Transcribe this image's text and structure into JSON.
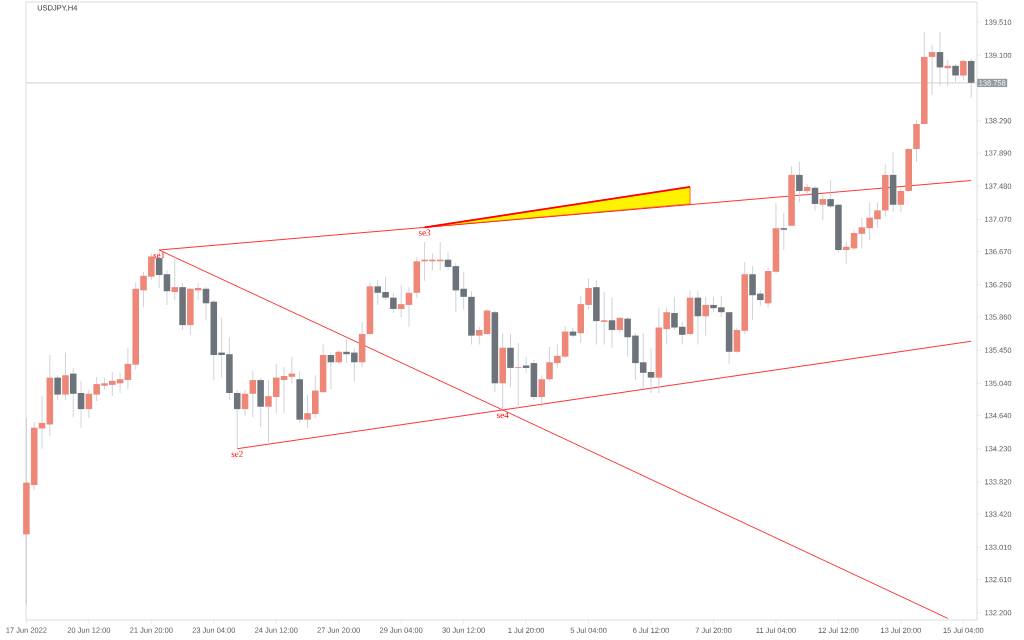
{
  "chart_data": {
    "type": "candlestick",
    "title": "USDJPY,H4",
    "categories": [
      "17 Jun 2022",
      null,
      null,
      null,
      null,
      null,
      null,
      null,
      "20 Jun 12:00",
      null,
      null,
      null,
      null,
      null,
      null,
      null,
      "21 Jun 20:00",
      null,
      null,
      null,
      null,
      null,
      null,
      null,
      "23 Jun 04:00",
      null,
      null,
      null,
      null,
      null,
      null,
      null,
      "24 Jun 12:00",
      null,
      null,
      null,
      null,
      null,
      null,
      null,
      "27 Jun 20:00",
      null,
      null,
      null,
      null,
      null,
      null,
      null,
      "29 Jun 04:00",
      null,
      null,
      null,
      null,
      null,
      null,
      null,
      "30 Jun 12:00",
      null,
      null,
      null,
      null,
      null,
      null,
      null,
      "1 Jul 20:00",
      null,
      null,
      null,
      null,
      null,
      null,
      null,
      "5 Jul 04:00",
      null,
      null,
      null,
      null,
      null,
      null,
      null,
      "6 Jul 12:00",
      null,
      null,
      null,
      null,
      null,
      null,
      null,
      "7 Jul 20:00",
      null,
      null,
      null,
      null,
      null,
      null,
      null,
      "11 Jul 04:00",
      null,
      null,
      null,
      null,
      null,
      null,
      null,
      "12 Jul 12:00",
      null,
      null,
      null,
      null,
      null,
      null,
      null,
      "13 Jul 20:00",
      null,
      null,
      null,
      null,
      null,
      null,
      null,
      "15 Jul 04:00",
      null
    ],
    "ohlc": [
      [
        133.17,
        134.61,
        132.3,
        133.81
      ],
      [
        133.78,
        134.56,
        133.72,
        134.49
      ],
      [
        134.48,
        134.88,
        134.23,
        134.55
      ],
      [
        134.53,
        135.39,
        134.39,
        135.11
      ],
      [
        135.11,
        135.14,
        134.83,
        134.9
      ],
      [
        134.9,
        135.42,
        134.83,
        135.14
      ],
      [
        135.16,
        135.23,
        134.62,
        134.91
      ],
      [
        134.92,
        135.07,
        134.49,
        134.72
      ],
      [
        134.72,
        134.96,
        134.61,
        134.91
      ],
      [
        134.9,
        135.12,
        134.82,
        135.03
      ],
      [
        135.01,
        135.11,
        134.96,
        135.04
      ],
      [
        135.02,
        135.18,
        134.88,
        135.07
      ],
      [
        135.04,
        135.17,
        134.92,
        135.09
      ],
      [
        135.08,
        135.48,
        134.97,
        135.28
      ],
      [
        135.27,
        136.29,
        135.21,
        136.21
      ],
      [
        136.19,
        136.42,
        135.98,
        136.37
      ],
      [
        136.36,
        136.65,
        136.32,
        136.61
      ],
      [
        136.59,
        136.69,
        136.22,
        136.38
      ],
      [
        136.39,
        136.44,
        136.01,
        136.18
      ],
      [
        136.17,
        136.6,
        136.07,
        136.23
      ],
      [
        136.23,
        136.28,
        135.7,
        135.76
      ],
      [
        135.76,
        136.22,
        135.64,
        136.21
      ],
      [
        136.19,
        136.28,
        136.07,
        136.22
      ],
      [
        136.21,
        136.23,
        135.82,
        136.03
      ],
      [
        136.05,
        136.07,
        135.08,
        135.39
      ],
      [
        135.42,
        135.85,
        135.11,
        135.39
      ],
      [
        135.4,
        135.61,
        134.83,
        134.92
      ],
      [
        134.92,
        134.96,
        134.23,
        134.72
      ],
      [
        134.72,
        134.96,
        134.64,
        134.91
      ],
      [
        134.91,
        135.19,
        134.62,
        135.08
      ],
      [
        135.08,
        135.11,
        134.5,
        134.75
      ],
      [
        134.75,
        135.08,
        134.31,
        134.88
      ],
      [
        134.87,
        135.28,
        134.67,
        135.11
      ],
      [
        135.08,
        135.24,
        134.67,
        135.13
      ],
      [
        135.12,
        135.37,
        135.04,
        135.16
      ],
      [
        135.09,
        135.19,
        134.55,
        134.59
      ],
      [
        134.59,
        134.9,
        134.49,
        134.67
      ],
      [
        134.66,
        135.14,
        134.61,
        134.95
      ],
      [
        134.93,
        135.52,
        134.92,
        135.39
      ],
      [
        135.39,
        135.42,
        134.97,
        135.3
      ],
      [
        135.3,
        135.45,
        135.28,
        135.43
      ],
      [
        135.43,
        135.58,
        135.29,
        135.4
      ],
      [
        135.42,
        135.48,
        135.07,
        135.3
      ],
      [
        135.3,
        135.8,
        135.24,
        135.65
      ],
      [
        135.65,
        136.29,
        135.64,
        136.24
      ],
      [
        136.24,
        136.32,
        136.01,
        136.16
      ],
      [
        136.17,
        136.36,
        136.07,
        136.1
      ],
      [
        136.1,
        136.16,
        135.91,
        135.96
      ],
      [
        135.96,
        136.26,
        135.86,
        136.02
      ],
      [
        136.01,
        136.23,
        135.74,
        136.16
      ],
      [
        136.16,
        136.6,
        136.1,
        136.55
      ],
      [
        136.55,
        136.79,
        136.31,
        136.57
      ],
      [
        136.55,
        136.65,
        136.44,
        136.57
      ],
      [
        136.55,
        136.79,
        136.44,
        136.57
      ],
      [
        136.57,
        136.66,
        136.44,
        136.48
      ],
      [
        136.49,
        136.53,
        135.92,
        136.19
      ],
      [
        136.21,
        136.42,
        135.95,
        136.11
      ],
      [
        136.11,
        136.18,
        135.52,
        135.63
      ],
      [
        135.63,
        135.74,
        135.52,
        135.7
      ],
      [
        135.65,
        135.96,
        135.64,
        135.94
      ],
      [
        135.92,
        135.94,
        134.93,
        135.04
      ],
      [
        135.04,
        135.66,
        134.71,
        135.48
      ],
      [
        135.48,
        135.65,
        134.99,
        135.23
      ],
      [
        135.23,
        135.54,
        134.73,
        135.24
      ],
      [
        135.26,
        135.37,
        135.17,
        135.23
      ],
      [
        135.29,
        135.33,
        134.83,
        134.87
      ],
      [
        134.87,
        135.14,
        134.75,
        135.09
      ],
      [
        135.09,
        135.49,
        135.06,
        135.3
      ],
      [
        135.29,
        135.52,
        135.23,
        135.38
      ],
      [
        135.37,
        135.75,
        135.35,
        135.68
      ],
      [
        135.68,
        135.73,
        135.61,
        135.63
      ],
      [
        135.66,
        136.12,
        135.54,
        136.02
      ],
      [
        136.01,
        136.34,
        135.95,
        136.22
      ],
      [
        136.23,
        136.32,
        135.52,
        135.81
      ],
      [
        135.8,
        136.17,
        135.52,
        135.82
      ],
      [
        135.82,
        136.1,
        135.48,
        135.7
      ],
      [
        135.7,
        135.86,
        135.66,
        135.85
      ],
      [
        135.84,
        135.86,
        135.37,
        135.61
      ],
      [
        135.63,
        135.66,
        135.08,
        135.29
      ],
      [
        135.3,
        135.66,
        134.98,
        135.17
      ],
      [
        135.18,
        135.47,
        134.92,
        135.11
      ],
      [
        135.11,
        135.97,
        134.92,
        135.73
      ],
      [
        135.71,
        135.98,
        135.52,
        135.92
      ],
      [
        135.91,
        136.11,
        135.7,
        135.73
      ],
      [
        135.74,
        135.8,
        135.52,
        135.64
      ],
      [
        135.65,
        136.19,
        135.63,
        136.1
      ],
      [
        136.1,
        136.18,
        135.52,
        135.87
      ],
      [
        135.87,
        136.11,
        135.63,
        136.01
      ],
      [
        136.01,
        136.11,
        135.92,
        135.97
      ],
      [
        135.98,
        136.12,
        135.86,
        135.92
      ],
      [
        135.92,
        135.92,
        135.28,
        135.43
      ],
      [
        135.43,
        135.73,
        135.42,
        135.7
      ],
      [
        135.69,
        136.54,
        135.65,
        136.39
      ],
      [
        136.39,
        136.49,
        135.82,
        136.13
      ],
      [
        136.15,
        136.19,
        136.0,
        136.07
      ],
      [
        136.03,
        136.47,
        135.98,
        136.43
      ],
      [
        136.42,
        137.27,
        136.4,
        136.96
      ],
      [
        136.96,
        137.15,
        136.69,
        136.94
      ],
      [
        136.99,
        137.73,
        136.99,
        137.62
      ],
      [
        137.62,
        137.78,
        137.28,
        137.42
      ],
      [
        137.42,
        137.51,
        137.36,
        137.47
      ],
      [
        137.46,
        137.48,
        137.18,
        137.26
      ],
      [
        137.25,
        137.37,
        137.06,
        137.32
      ],
      [
        137.32,
        137.56,
        137.21,
        137.23
      ],
      [
        137.25,
        137.26,
        136.66,
        136.69
      ],
      [
        136.69,
        136.79,
        136.52,
        136.73
      ],
      [
        136.71,
        136.94,
        136.69,
        136.9
      ],
      [
        136.89,
        137.09,
        136.71,
        136.97
      ],
      [
        136.96,
        137.28,
        136.81,
        137.09
      ],
      [
        137.07,
        137.28,
        136.97,
        137.18
      ],
      [
        137.18,
        137.75,
        137.11,
        137.62
      ],
      [
        137.62,
        137.9,
        137.16,
        137.25
      ],
      [
        137.25,
        137.46,
        137.16,
        137.42
      ],
      [
        137.42,
        137.95,
        137.41,
        137.94
      ],
      [
        137.94,
        138.3,
        137.78,
        138.25
      ],
      [
        138.25,
        139.39,
        138.25,
        139.08
      ],
      [
        139.08,
        139.23,
        138.61,
        139.14
      ],
      [
        139.14,
        139.39,
        138.72,
        138.95
      ],
      [
        138.94,
        139.04,
        138.72,
        138.97
      ],
      [
        138.97,
        138.99,
        138.77,
        138.85
      ],
      [
        138.85,
        139.05,
        138.79,
        139.03
      ],
      [
        139.03,
        139.06,
        138.57,
        138.76
      ]
    ],
    "series": [
      {
        "type": "line",
        "color": "#ff0000",
        "values": [
          null,
          null,
          null,
          null,
          null,
          null,
          null,
          null,
          null,
          null,
          null,
          null,
          null,
          null,
          null,
          null,
          null,
          136.69,
          null,
          null,
          null,
          null,
          null,
          null,
          null,
          null,
          null,
          null,
          null,
          null,
          null,
          null,
          null,
          null,
          null,
          null,
          null,
          null,
          null,
          null,
          null,
          null,
          null,
          null,
          null,
          null,
          null,
          null,
          null,
          null,
          null,
          136.97,
          null,
          null,
          null,
          null,
          null,
          null,
          null,
          null,
          null,
          null,
          null,
          null,
          null,
          null,
          null,
          null,
          null,
          null,
          null,
          null,
          null,
          null,
          null,
          null,
          null,
          null,
          null,
          null,
          null,
          null,
          null,
          null,
          null,
          null,
          null,
          null,
          null,
          null,
          null,
          null,
          null,
          null,
          null,
          null,
          null,
          null,
          null,
          null,
          null,
          null,
          null,
          null,
          null,
          null,
          null,
          null,
          null,
          null,
          null,
          null,
          null,
          null,
          null,
          null,
          null,
          null,
          null,
          null,
          null,
          137.55
        ]
      },
      {
        "type": "line",
        "color": "#ff0000",
        "values": [
          null,
          null,
          null,
          null,
          null,
          null,
          null,
          null,
          null,
          null,
          null,
          null,
          null,
          null,
          null,
          null,
          null,
          null,
          null,
          null,
          null,
          null,
          null,
          null,
          null,
          null,
          null,
          134.23,
          null,
          null,
          null,
          null,
          null,
          null,
          null,
          null,
          null,
          null,
          null,
          null,
          null,
          null,
          null,
          null,
          null,
          null,
          null,
          null,
          null,
          null,
          null,
          null,
          null,
          null,
          null,
          null,
          null,
          null,
          null,
          null,
          null,
          134.71,
          null,
          null,
          null,
          null,
          null,
          null,
          null,
          null,
          null,
          null,
          null,
          null,
          null,
          null,
          null,
          null,
          null,
          null,
          null,
          null,
          null,
          null,
          null,
          null,
          null,
          null,
          null,
          null,
          null,
          null,
          null,
          null,
          null,
          null,
          null,
          null,
          null,
          null,
          null,
          null,
          null,
          null,
          null,
          null,
          null,
          null,
          null,
          null,
          null,
          null,
          null,
          null,
          null,
          null,
          null,
          null,
          null,
          null,
          null,
          135.56
        ]
      },
      {
        "type": "line",
        "color": "#ff0000",
        "values": [
          null,
          null,
          null,
          null,
          null,
          null,
          null,
          null,
          null,
          null,
          null,
          null,
          null,
          null,
          null,
          null,
          null,
          136.69,
          null,
          null,
          null,
          null,
          null,
          null,
          null,
          null,
          null,
          null,
          null,
          null,
          null,
          null,
          null,
          null,
          null,
          null,
          null,
          null,
          null,
          null,
          null,
          null,
          null,
          null,
          null,
          null,
          null,
          null,
          null,
          null,
          null,
          null,
          null,
          null,
          null,
          null,
          null,
          null,
          null,
          null,
          null,
          134.71,
          null,
          null,
          null,
          null,
          null,
          null,
          null,
          null,
          null,
          null,
          null,
          null,
          null,
          null,
          null,
          null,
          null,
          null,
          null,
          null,
          null,
          null,
          null,
          null,
          null,
          null,
          null,
          null,
          null,
          null,
          null,
          null,
          null,
          null,
          null,
          null,
          null,
          null,
          null,
          null,
          null,
          null,
          null,
          null,
          null,
          null,
          null,
          null,
          null,
          null,
          null,
          null,
          null,
          null,
          null,
          null,
          132.13,
          null,
          null,
          null
        ]
      },
      {
        "type": "line",
        "color": "#ff0000",
        "values": [
          null,
          null,
          null,
          null,
          null,
          null,
          null,
          null,
          null,
          null,
          null,
          null,
          null,
          null,
          null,
          null,
          null,
          null,
          null,
          null,
          null,
          null,
          null,
          null,
          null,
          null,
          null,
          null,
          null,
          null,
          null,
          null,
          null,
          null,
          null,
          null,
          null,
          null,
          null,
          null,
          null,
          null,
          null,
          null,
          null,
          null,
          null,
          null,
          null,
          null,
          null,
          136.97,
          null,
          null,
          null,
          null,
          null,
          null,
          null,
          null,
          null,
          null,
          null,
          null,
          null,
          null,
          null,
          null,
          null,
          null,
          null,
          null,
          null,
          null,
          null,
          null,
          null,
          null,
          null,
          null,
          null,
          null,
          null,
          null,
          null,
          137.47,
          null,
          null,
          null,
          null,
          null,
          null,
          null,
          null,
          null,
          null,
          null,
          null,
          null,
          null,
          null,
          null,
          null,
          null,
          null,
          null,
          null,
          null,
          null,
          null,
          null,
          null,
          null,
          null,
          null,
          null,
          null,
          null,
          null,
          null,
          null,
          null
        ],
        "lower": [
          null,
          null,
          null,
          null,
          null,
          null,
          null,
          null,
          null,
          null,
          null,
          null,
          null,
          null,
          null,
          null,
          null,
          null,
          null,
          null,
          null,
          null,
          null,
          null,
          null,
          null,
          null,
          null,
          null,
          null,
          null,
          null,
          null,
          null,
          null,
          null,
          null,
          null,
          null,
          null,
          null,
          null,
          null,
          null,
          null,
          null,
          null,
          null,
          null,
          null,
          null,
          136.97,
          null,
          null,
          null,
          null,
          null,
          null,
          null,
          null,
          null,
          null,
          null,
          null,
          null,
          null,
          null,
          null,
          null,
          null,
          null,
          null,
          null,
          null,
          null,
          null,
          null,
          null,
          null,
          null,
          null,
          null,
          null,
          null,
          null,
          137.26,
          null,
          null,
          null,
          null,
          null,
          null,
          null,
          null,
          null,
          null,
          null,
          null,
          null,
          null,
          null,
          null,
          null,
          null,
          null,
          null,
          null,
          null,
          null,
          null,
          null,
          null,
          null,
          null,
          null,
          null,
          null,
          null,
          null,
          null,
          null,
          null
        ],
        "upper": [
          null,
          null,
          null,
          null,
          null,
          null,
          null,
          null,
          null,
          null,
          null,
          null,
          null,
          null,
          null,
          null,
          null,
          null,
          null,
          null,
          null,
          null,
          null,
          null,
          null,
          null,
          null,
          null,
          null,
          null,
          null,
          null,
          null,
          null,
          null,
          null,
          null,
          null,
          null,
          null,
          null,
          null,
          null,
          null,
          null,
          null,
          null,
          null,
          null,
          null,
          null,
          136.97,
          null,
          null,
          null,
          null,
          null,
          null,
          null,
          null,
          null,
          null,
          null,
          null,
          null,
          null,
          null,
          null,
          null,
          null,
          null,
          null,
          null,
          null,
          null,
          null,
          null,
          null,
          null,
          null,
          null,
          null,
          null,
          null,
          null,
          137.47,
          null,
          null,
          null,
          null,
          null,
          null,
          null,
          null,
          null,
          null,
          null,
          null,
          null,
          null,
          null,
          null,
          null,
          null,
          null,
          null,
          null,
          null,
          null,
          null,
          null,
          null,
          null,
          null,
          null,
          null,
          null,
          null,
          null,
          null,
          null,
          null
        ]
      }
    ],
    "annotations": [
      "se1",
      "se2",
      "se3",
      "se4"
    ],
    "ref_lines": [
      {
        "axis": "y",
        "value": 138.758,
        "label": "138.758",
        "color": "#c8c8c8"
      }
    ],
    "ylim": [
      132.11,
      139.76
    ],
    "yticks": [
      {
        "value": 132.2,
        "label": "132.200"
      },
      {
        "value": 132.61,
        "label": "132.610"
      },
      {
        "value": 133.01,
        "label": "133.010"
      },
      {
        "value": 133.42,
        "label": "133.420"
      },
      {
        "value": 133.82,
        "label": "133.820"
      },
      {
        "value": 134.23,
        "label": "134.230"
      },
      {
        "value": 134.64,
        "label": "134.640"
      },
      {
        "value": 135.04,
        "label": "135.040"
      },
      {
        "value": 135.45,
        "label": "135.450"
      },
      {
        "value": 135.86,
        "label": "135.860"
      },
      {
        "value": 136.26,
        "label": "136.260"
      },
      {
        "value": 136.67,
        "label": "136.670"
      },
      {
        "value": 137.07,
        "label": "137.070"
      },
      {
        "value": 137.48,
        "label": "137.480"
      },
      {
        "value": 137.89,
        "label": "137.890"
      },
      {
        "value": 138.29,
        "label": "138.290"
      },
      {
        "value": 139.1,
        "label": "139.100"
      },
      {
        "value": 139.51,
        "label": "139.510"
      }
    ]
  }
}
